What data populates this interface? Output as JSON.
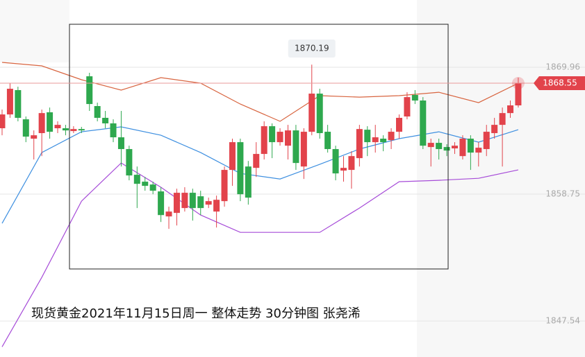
{
  "chart_data": {
    "type": "candlestick",
    "caption": "现货黄金2021年11月15日周一  整体走势  30分钟图  张尧浠",
    "up_color": "#e2434b",
    "down_color": "#2ea84e",
    "ylim": [
      1844.36,
      1875.9
    ],
    "yticks": [
      1869.96,
      1858.75,
      1847.54
    ],
    "grid": true,
    "open": [
      1864.57,
      1865.79,
      1867.94,
      1865.36,
      1863.65,
      1864.14,
      1865.98,
      1864.57,
      1864.57,
      1864.32,
      1864.5,
      1869.16,
      1866.53,
      1865.49,
      1865.0,
      1863.77,
      1862.73,
      1860.46,
      1859.85,
      1859.6,
      1858.99,
      1856.78,
      1857.09,
      1857.52,
      1858.87,
      1858.56,
      1857.82,
      1857.21,
      1858.13,
      1860.89,
      1863.34,
      1861.19,
      1861.07,
      1862.3,
      1864.75,
      1863.34,
      1863.03,
      1864.38,
      1861.19,
      1864.26,
      1867.63,
      1864.26,
      1862.73,
      1860.83,
      1860.89,
      1861.93,
      1864.44,
      1863.34,
      1863.65,
      1863.52,
      1864.26,
      1865.61,
      1867.51,
      1867.02,
      1862.91,
      1863.28,
      1862.91,
      1862.79,
      1862.11,
      1863.65,
      1862.42,
      1862.73,
      1864.14,
      1864.87,
      1865.91,
      1866.59
    ],
    "high": [
      1866.22,
      1868.55,
      1868.24,
      1865.61,
      1864.38,
      1866.22,
      1866.4,
      1865.18,
      1864.87,
      1864.75,
      1864.69,
      1869.47,
      1866.83,
      1866.1,
      1865.36,
      1866.1,
      1863.03,
      1861.19,
      1860.27,
      1859.85,
      1859.36,
      1857.64,
      1859.23,
      1859.36,
      1859.23,
      1859.05,
      1858.44,
      1858.62,
      1861.19,
      1863.65,
      1863.65,
      1861.68,
      1863.34,
      1865.18,
      1865.0,
      1864.57,
      1864.87,
      1864.87,
      1864.57,
      1870.19,
      1868.06,
      1864.87,
      1863.03,
      1862.11,
      1862.54,
      1864.87,
      1864.75,
      1864.87,
      1863.95,
      1864.57,
      1865.79,
      1867.75,
      1867.94,
      1867.32,
      1863.65,
      1863.65,
      1863.16,
      1863.34,
      1863.95,
      1863.95,
      1863.34,
      1864.87,
      1865.49,
      1866.4,
      1867.02,
      1869.04
    ],
    "low": [
      1863.95,
      1865.49,
      1865.18,
      1863.34,
      1861.81,
      1862.11,
      1863.65,
      1864.14,
      1863.95,
      1864.14,
      1864.14,
      1866.1,
      1865.18,
      1864.57,
      1863.34,
      1861.19,
      1859.97,
      1857.52,
      1859.05,
      1858.74,
      1856.29,
      1855.68,
      1855.98,
      1857.21,
      1856.41,
      1856.9,
      1857.52,
      1855.8,
      1857.64,
      1859.48,
      1858.13,
      1857.82,
      1860.27,
      1861.81,
      1861.93,
      1863.03,
      1861.81,
      1860.89,
      1860.09,
      1863.95,
      1863.65,
      1862.42,
      1859.97,
      1859.85,
      1859.23,
      1861.19,
      1862.11,
      1862.42,
      1862.54,
      1862.73,
      1863.65,
      1865.36,
      1866.71,
      1862.73,
      1861.19,
      1861.81,
      1862.11,
      1862.3,
      1861.81,
      1860.89,
      1861.19,
      1862.11,
      1863.65,
      1861.19,
      1865.49,
      1866.4
    ],
    "close": [
      1865.79,
      1868.06,
      1865.49,
      1863.83,
      1863.95,
      1865.91,
      1864.26,
      1864.87,
      1864.38,
      1864.5,
      1864.38,
      1866.71,
      1865.49,
      1865.0,
      1863.77,
      1862.73,
      1860.4,
      1859.66,
      1859.48,
      1859.05,
      1856.9,
      1857.21,
      1858.87,
      1858.87,
      1857.52,
      1857.52,
      1858.13,
      1858.25,
      1860.89,
      1863.34,
      1858.74,
      1858.44,
      1862.3,
      1864.75,
      1863.34,
      1864.26,
      1864.38,
      1861.5,
      1864.26,
      1867.63,
      1864.14,
      1862.73,
      1860.58,
      1861.07,
      1862.11,
      1864.5,
      1863.34,
      1863.77,
      1863.34,
      1864.26,
      1865.49,
      1867.32,
      1867.02,
      1863.03,
      1863.28,
      1862.73,
      1862.6,
      1863.03,
      1863.65,
      1862.42,
      1862.85,
      1864.26,
      1864.87,
      1865.91,
      1866.59,
      1868.55
    ],
    "lines": [
      {
        "color": "#d8643f",
        "x": [
          0,
          5,
          10,
          15,
          20,
          25,
          30,
          35,
          40,
          45,
          50,
          55,
          60,
          65
        ],
        "values": [
          1870.39,
          1870.08,
          1868.86,
          1867.94,
          1869.04,
          1868.55,
          1866.71,
          1865.18,
          1867.45,
          1867.32,
          1867.45,
          1867.75,
          1866.83,
          1868.55
        ]
      },
      {
        "color": "#3d8fe0",
        "x": [
          0,
          5,
          10,
          15,
          20,
          25,
          30,
          35,
          40,
          45,
          50,
          55,
          60,
          65
        ],
        "values": [
          1856.17,
          1862.42,
          1864.26,
          1864.69,
          1863.95,
          1862.42,
          1860.58,
          1860.09,
          1861.38,
          1862.73,
          1863.65,
          1864.26,
          1863.34,
          1864.44
        ]
      },
      {
        "color": "#a64bd8",
        "x": [
          0,
          5,
          10,
          15,
          20,
          25,
          30,
          35,
          40,
          45,
          50,
          55,
          60,
          65
        ],
        "values": [
          1845.26,
          1851.39,
          1858.13,
          1861.5,
          1859.36,
          1856.9,
          1855.37,
          1855.37,
          1855.37,
          1857.52,
          1859.85,
          1859.97,
          1860.15,
          1860.89
        ]
      }
    ]
  }
}
